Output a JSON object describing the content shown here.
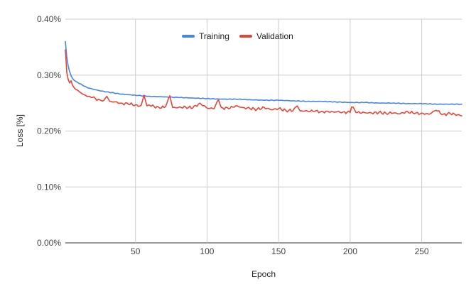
{
  "chart_data": {
    "type": "line",
    "title": "",
    "xlabel": "Epoch",
    "ylabel": "Loss [%]",
    "xlim": [
      1,
      278
    ],
    "ylim": [
      0,
      0.4
    ],
    "grid": true,
    "legend_position": "top-center",
    "x_ticks": [
      50,
      100,
      150,
      200,
      250
    ],
    "x_tick_labels": [
      "50",
      "100",
      "150",
      "200",
      "250"
    ],
    "y_ticks": [
      0,
      0.1,
      0.2,
      0.3,
      0.4
    ],
    "y_tick_labels": [
      "0.00%",
      "0.10%",
      "0.20%",
      "0.30%",
      "0.40%"
    ],
    "series": [
      {
        "name": "Training",
        "color": "#4285f4",
        "x": [
          1,
          2,
          3,
          4,
          5,
          6,
          8,
          10,
          13,
          16,
          20,
          25,
          30,
          35,
          40,
          50,
          60,
          70,
          80,
          90,
          100,
          110,
          120,
          130,
          140,
          150,
          160,
          170,
          180,
          190,
          200,
          210,
          220,
          230,
          240,
          250,
          260,
          270,
          278
        ],
        "values": [
          0.36,
          0.332,
          0.316,
          0.306,
          0.299,
          0.294,
          0.289,
          0.286,
          0.282,
          0.278,
          0.275,
          0.272,
          0.27,
          0.268,
          0.266,
          0.264,
          0.262,
          0.261,
          0.26,
          0.259,
          0.258,
          0.257,
          0.257,
          0.256,
          0.255,
          0.255,
          0.254,
          0.253,
          0.253,
          0.252,
          0.251,
          0.251,
          0.25,
          0.25,
          0.249,
          0.249,
          0.248,
          0.248,
          0.248
        ]
      },
      {
        "name": "Validation",
        "color": "#ea4335",
        "x": [
          1,
          2,
          3,
          4,
          5,
          6,
          7,
          8,
          10,
          12,
          14,
          16,
          18,
          20,
          22,
          25,
          28,
          30,
          32,
          35,
          40,
          45,
          50,
          52,
          54,
          56,
          58,
          60,
          63,
          66,
          70,
          72,
          74,
          76,
          80,
          85,
          90,
          95,
          100,
          105,
          108,
          110,
          115,
          120,
          125,
          130,
          135,
          140,
          145,
          150,
          155,
          160,
          163,
          165,
          170,
          175,
          180,
          185,
          190,
          195,
          200,
          201,
          205,
          210,
          215,
          220,
          225,
          230,
          235,
          240,
          245,
          250,
          255,
          260,
          265,
          270,
          275,
          278
        ],
        "values": [
          0.345,
          0.305,
          0.292,
          0.286,
          0.29,
          0.282,
          0.278,
          0.275,
          0.272,
          0.268,
          0.265,
          0.262,
          0.262,
          0.26,
          0.258,
          0.256,
          0.255,
          0.262,
          0.253,
          0.252,
          0.25,
          0.248,
          0.247,
          0.244,
          0.246,
          0.264,
          0.245,
          0.246,
          0.244,
          0.243,
          0.242,
          0.25,
          0.263,
          0.242,
          0.242,
          0.243,
          0.241,
          0.25,
          0.241,
          0.24,
          0.256,
          0.242,
          0.24,
          0.245,
          0.242,
          0.24,
          0.239,
          0.242,
          0.238,
          0.24,
          0.237,
          0.236,
          0.245,
          0.236,
          0.236,
          0.235,
          0.235,
          0.234,
          0.234,
          0.234,
          0.233,
          0.243,
          0.233,
          0.233,
          0.232,
          0.233,
          0.232,
          0.232,
          0.231,
          0.235,
          0.231,
          0.232,
          0.23,
          0.237,
          0.23,
          0.231,
          0.229,
          0.227
        ]
      }
    ]
  }
}
